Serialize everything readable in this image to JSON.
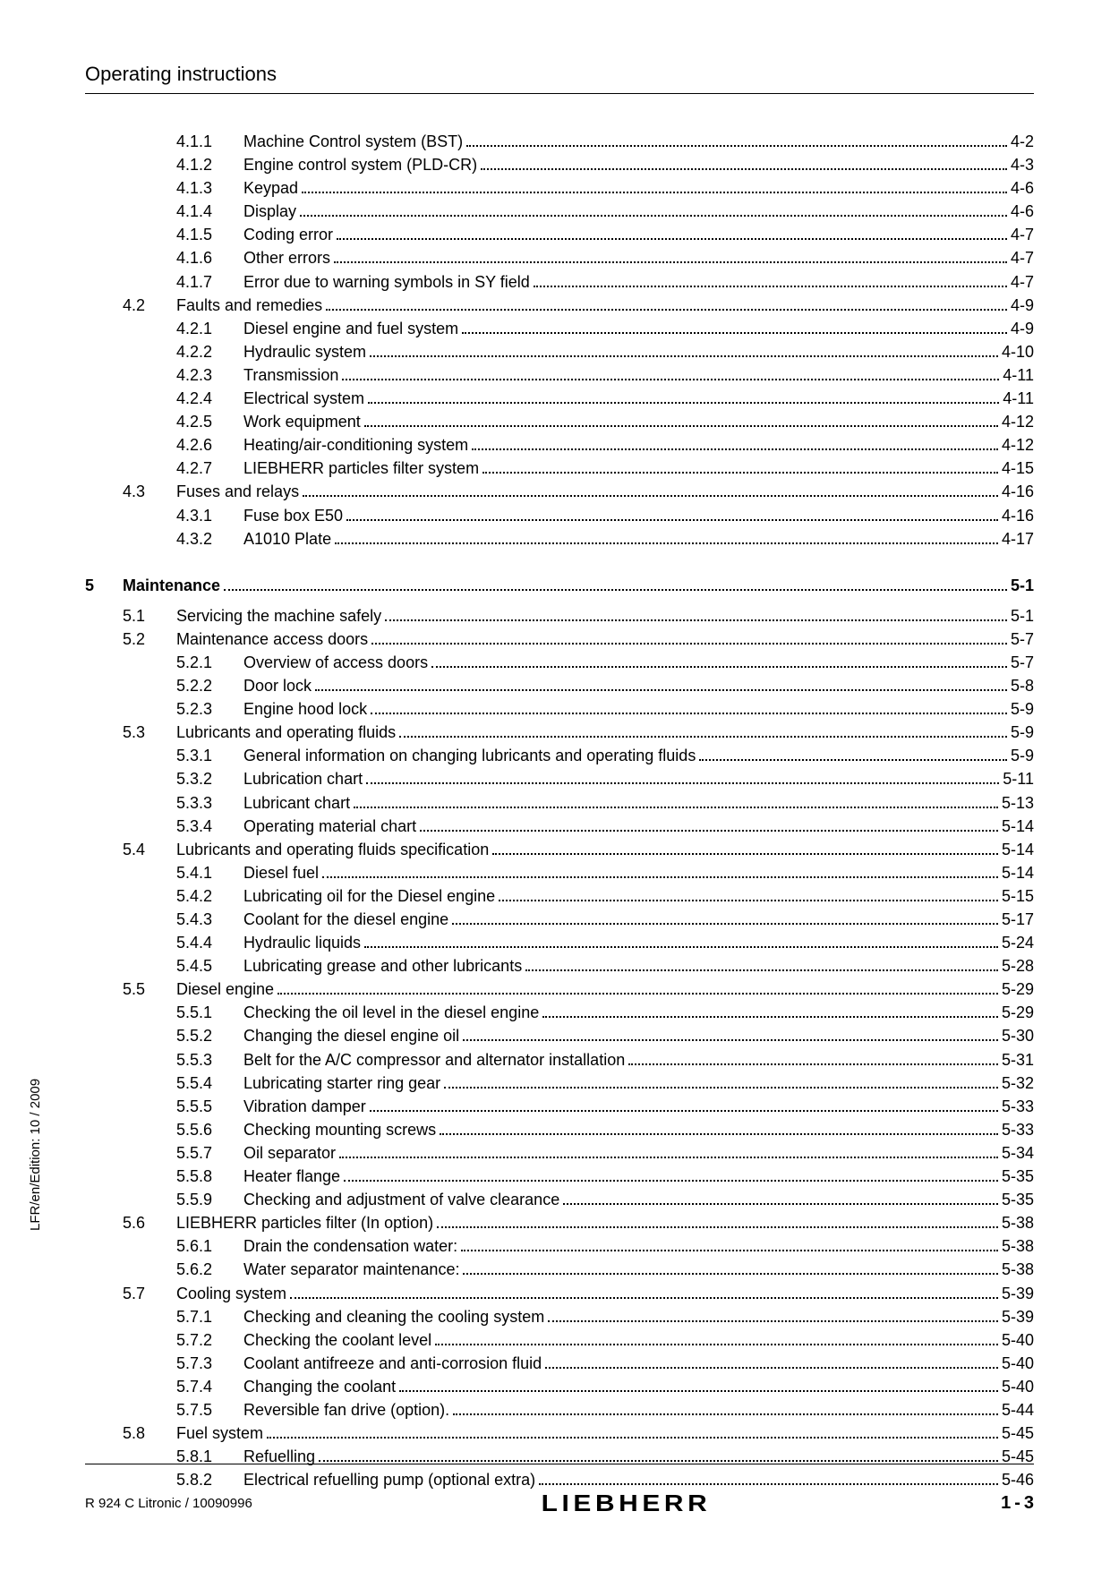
{
  "header": {
    "title": "Operating instructions"
  },
  "sideText": "LFR/en/Edition: 10 / 2009",
  "footer": {
    "left": "R 924 C Litronic / 10090996",
    "logo": "LIEBHERR",
    "pagePrefix": "1",
    "pageNum": "3"
  },
  "toc": [
    {
      "level": 3,
      "num": "4.1.1",
      "title": "Machine Control system (BST)",
      "page": "4-2"
    },
    {
      "level": 3,
      "num": "4.1.2",
      "title": "Engine control system (PLD-CR)",
      "page": "4-3"
    },
    {
      "level": 3,
      "num": "4.1.3",
      "title": "Keypad",
      "page": "4-6"
    },
    {
      "level": 3,
      "num": "4.1.4",
      "title": "Display",
      "page": "4-6"
    },
    {
      "level": 3,
      "num": "4.1.5",
      "title": "Coding error",
      "page": "4-7"
    },
    {
      "level": 3,
      "num": "4.1.6",
      "title": "Other errors",
      "page": "4-7"
    },
    {
      "level": 3,
      "num": "4.1.7",
      "title": "Error due to warning symbols in SY field",
      "page": "4-7"
    },
    {
      "level": 2,
      "num": "4.2",
      "title": "Faults and remedies",
      "page": "4-9"
    },
    {
      "level": 3,
      "num": "4.2.1",
      "title": "Diesel engine and fuel system",
      "page": "4-9"
    },
    {
      "level": 3,
      "num": "4.2.2",
      "title": "Hydraulic system",
      "page": "4-10"
    },
    {
      "level": 3,
      "num": "4.2.3",
      "title": "Transmission",
      "page": "4-11"
    },
    {
      "level": 3,
      "num": "4.2.4",
      "title": "Electrical system",
      "page": "4-11"
    },
    {
      "level": 3,
      "num": "4.2.5",
      "title": "Work equipment",
      "page": "4-12"
    },
    {
      "level": 3,
      "num": "4.2.6",
      "title": "Heating/air-conditioning system",
      "page": "4-12"
    },
    {
      "level": 3,
      "num": "4.2.7",
      "title": "LIEBHERR particles filter system",
      "page": "4-15"
    },
    {
      "level": 2,
      "num": "4.3",
      "title": "Fuses and relays",
      "page": "4-16"
    },
    {
      "level": 3,
      "num": "4.3.1",
      "title": "Fuse box E50",
      "page": "4-16"
    },
    {
      "level": 3,
      "num": "4.3.2",
      "title": "A1010 Plate",
      "page": "4-17"
    },
    {
      "level": 1,
      "num": "5",
      "title": "Maintenance",
      "page": "5-1",
      "bold": true
    },
    {
      "level": 2,
      "num": "5.1",
      "title": "Servicing the machine safely",
      "page": "5-1"
    },
    {
      "level": 2,
      "num": "5.2",
      "title": "Maintenance access doors",
      "page": "5-7"
    },
    {
      "level": 3,
      "num": "5.2.1",
      "title": "Overview of access doors",
      "page": "5-7"
    },
    {
      "level": 3,
      "num": "5.2.2",
      "title": "Door lock",
      "page": "5-8"
    },
    {
      "level": 3,
      "num": "5.2.3",
      "title": "Engine hood lock",
      "page": "5-9"
    },
    {
      "level": 2,
      "num": "5.3",
      "title": "Lubricants and operating fluids",
      "page": "5-9"
    },
    {
      "level": 3,
      "num": "5.3.1",
      "title": "General information on changing lubricants and operating fluids",
      "page": "5-9"
    },
    {
      "level": 3,
      "num": "5.3.2",
      "title": "Lubrication chart",
      "page": "5-11"
    },
    {
      "level": 3,
      "num": "5.3.3",
      "title": "Lubricant chart",
      "page": "5-13"
    },
    {
      "level": 3,
      "num": "5.3.4",
      "title": "Operating material chart",
      "page": "5-14"
    },
    {
      "level": 2,
      "num": "5.4",
      "title": "Lubricants and operating fluids specification",
      "page": "5-14"
    },
    {
      "level": 3,
      "num": "5.4.1",
      "title": "Diesel fuel",
      "page": "5-14"
    },
    {
      "level": 3,
      "num": "5.4.2",
      "title": "Lubricating oil for the Diesel engine",
      "page": "5-15"
    },
    {
      "level": 3,
      "num": "5.4.3",
      "title": "Coolant for the diesel engine",
      "page": "5-17"
    },
    {
      "level": 3,
      "num": "5.4.4",
      "title": "Hydraulic liquids",
      "page": "5-24"
    },
    {
      "level": 3,
      "num": "5.4.5",
      "title": "Lubricating grease and other lubricants",
      "page": "5-28"
    },
    {
      "level": 2,
      "num": "5.5",
      "title": "Diesel engine",
      "page": "5-29"
    },
    {
      "level": 3,
      "num": "5.5.1",
      "title": "Checking the oil level in the diesel engine",
      "page": "5-29"
    },
    {
      "level": 3,
      "num": "5.5.2",
      "title": "Changing the diesel engine oil",
      "page": "5-30"
    },
    {
      "level": 3,
      "num": "5.5.3",
      "title": "Belt for the A/C compressor and alternator installation",
      "page": "5-31"
    },
    {
      "level": 3,
      "num": "5.5.4",
      "title": "Lubricating starter ring gear",
      "page": "5-32"
    },
    {
      "level": 3,
      "num": "5.5.5",
      "title": "Vibration damper",
      "page": "5-33"
    },
    {
      "level": 3,
      "num": "5.5.6",
      "title": "Checking mounting screws",
      "page": "5-33"
    },
    {
      "level": 3,
      "num": "5.5.7",
      "title": "Oil separator",
      "page": "5-34"
    },
    {
      "level": 3,
      "num": "5.5.8",
      "title": "Heater flange",
      "page": "5-35"
    },
    {
      "level": 3,
      "num": "5.5.9",
      "title": "Checking and adjustment of valve clearance",
      "page": "5-35"
    },
    {
      "level": 2,
      "num": "5.6",
      "title": "LIEBHERR particles filter (In option)",
      "page": "5-38"
    },
    {
      "level": 3,
      "num": "5.6.1",
      "title": "Drain the condensation water:",
      "page": "5-38"
    },
    {
      "level": 3,
      "num": "5.6.2",
      "title": "Water separator maintenance:",
      "page": "5-38"
    },
    {
      "level": 2,
      "num": "5.7",
      "title": "Cooling system",
      "page": "5-39"
    },
    {
      "level": 3,
      "num": "5.7.1",
      "title": "Checking and cleaning the cooling system",
      "page": "5-39"
    },
    {
      "level": 3,
      "num": "5.7.2",
      "title": "Checking the coolant level",
      "page": "5-40"
    },
    {
      "level": 3,
      "num": "5.7.3",
      "title": "Coolant antifreeze and anti-corrosion fluid",
      "page": "5-40"
    },
    {
      "level": 3,
      "num": "5.7.4",
      "title": "Changing the coolant",
      "page": "5-40"
    },
    {
      "level": 3,
      "num": "5.7.5",
      "title": "Reversible fan drive (option).",
      "page": "5-44"
    },
    {
      "level": 2,
      "num": "5.8",
      "title": "Fuel system",
      "page": "5-45"
    },
    {
      "level": 3,
      "num": "5.8.1",
      "title": "Refuelling",
      "page": "5-45"
    },
    {
      "level": 3,
      "num": "5.8.2",
      "title": "Electrical refuelling pump (optional extra)",
      "page": "5-46"
    }
  ]
}
